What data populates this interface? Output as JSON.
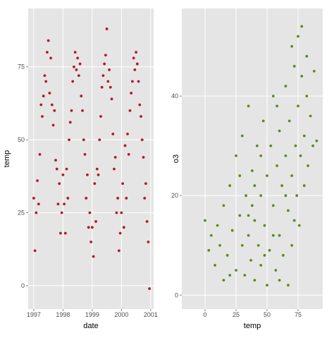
{
  "chart_data": [
    {
      "type": "scatter",
      "x_label": "date",
      "y_label": "temp",
      "color": "#b2182b",
      "xlim": [
        1996.81,
        2001.1
      ],
      "xticks": [
        1997,
        1998,
        1999,
        2000,
        2001
      ],
      "ylim": [
        -8,
        95
      ],
      "yticks": [
        0,
        25,
        50,
        75
      ],
      "grid": true,
      "x": [
        1997,
        1997.042,
        1997.083,
        1997.125,
        1997.167,
        1997.208,
        1997.25,
        1997.292,
        1997.333,
        1997.375,
        1997.417,
        1997.458,
        1997.5,
        1997.542,
        1997.583,
        1997.625,
        1997.667,
        1997.708,
        1997.75,
        1997.792,
        1997.833,
        1997.875,
        1997.917,
        1997.958,
        1998,
        1998.042,
        1998.083,
        1998.125,
        1998.167,
        1998.208,
        1998.25,
        1998.292,
        1998.333,
        1998.375,
        1998.417,
        1998.458,
        1998.5,
        1998.542,
        1998.583,
        1998.625,
        1998.667,
        1998.708,
        1998.75,
        1998.792,
        1998.833,
        1998.875,
        1998.917,
        1998.958,
        1999,
        1999.042,
        1999.083,
        1999.125,
        1999.167,
        1999.208,
        1999.25,
        1999.292,
        1999.333,
        1999.375,
        1999.417,
        1999.458,
        1999.5,
        1999.542,
        1999.583,
        1999.625,
        1999.667,
        1999.708,
        1999.75,
        1999.792,
        1999.833,
        1999.875,
        1999.917,
        1999.958,
        2000,
        2000.042,
        2000.083,
        2000.125,
        2000.167,
        2000.208,
        2000.25,
        2000.292,
        2000.333,
        2000.375,
        2000.417,
        2000.458,
        2000.5,
        2000.542,
        2000.583,
        2000.625,
        2000.667,
        2000.708,
        2000.75,
        2000.792,
        2000.833,
        2000.875,
        2000.917,
        2000.958
      ],
      "values": [
        30,
        12,
        25,
        36,
        28,
        45,
        62,
        58,
        65,
        72,
        70,
        80,
        84,
        66,
        78,
        62,
        55,
        60,
        43,
        40,
        28,
        35,
        18,
        25,
        38,
        28,
        18,
        40,
        30,
        50,
        56,
        60,
        70,
        75,
        80,
        74,
        78,
        72,
        76,
        65,
        60,
        50,
        45,
        30,
        38,
        20,
        25,
        15,
        20,
        10,
        35,
        22,
        40,
        38,
        50,
        58,
        68,
        72,
        76,
        79,
        88,
        70,
        74,
        68,
        64,
        52,
        40,
        44,
        25,
        30,
        12,
        18,
        25,
        35,
        20,
        48,
        30,
        52,
        45,
        60,
        66,
        70,
        78,
        74,
        80,
        76,
        70,
        62,
        58,
        50,
        44,
        30,
        35,
        22,
        15,
        -1
      ]
    },
    {
      "type": "scatter",
      "x_label": "temp",
      "y_label": "o3",
      "color": "#5a8a1e",
      "xlim": [
        -18.75,
        94.9
      ],
      "xticks": [
        0,
        25,
        50,
        75
      ],
      "ylim": [
        -2.8,
        57.6
      ],
      "yticks": [
        0,
        20,
        40
      ],
      "grid": true,
      "x": [
        0,
        3,
        5,
        8,
        10,
        12,
        15,
        18,
        20,
        22,
        25,
        25,
        28,
        30,
        30,
        32,
        33,
        35,
        35,
        37,
        38,
        40,
        40,
        42,
        43,
        45,
        45,
        47,
        48,
        50,
        50,
        52,
        53,
        55,
        55,
        57,
        58,
        60,
        60,
        62,
        63,
        65,
        65,
        67,
        68,
        70,
        70,
        72,
        73,
        74,
        75,
        75,
        76,
        77,
        78,
        78,
        80,
        80,
        82,
        83,
        85,
        87,
        88,
        90,
        60,
        45,
        38,
        28,
        70,
        82,
        67,
        55,
        48,
        35,
        65,
        72,
        58,
        40,
        20,
        15
      ],
      "values": [
        15,
        9,
        12,
        6,
        14,
        10,
        18,
        8,
        22,
        13,
        5,
        28,
        16,
        10,
        32,
        4,
        20,
        12,
        38,
        7,
        25,
        15,
        3,
        30,
        10,
        20,
        6,
        35,
        14,
        24,
        2,
        9,
        30,
        18,
        40,
        5,
        26,
        12,
        33,
        22,
        8,
        28,
        42,
        17,
        35,
        24,
        10,
        46,
        30,
        20,
        38,
        52,
        14,
        28,
        44,
        54,
        32,
        22,
        40,
        26,
        36,
        30,
        45,
        31,
        3,
        28,
        18,
        24,
        50,
        48,
        2,
        12,
        8,
        16,
        20,
        15,
        38,
        22,
        4,
        3
      ]
    }
  ]
}
